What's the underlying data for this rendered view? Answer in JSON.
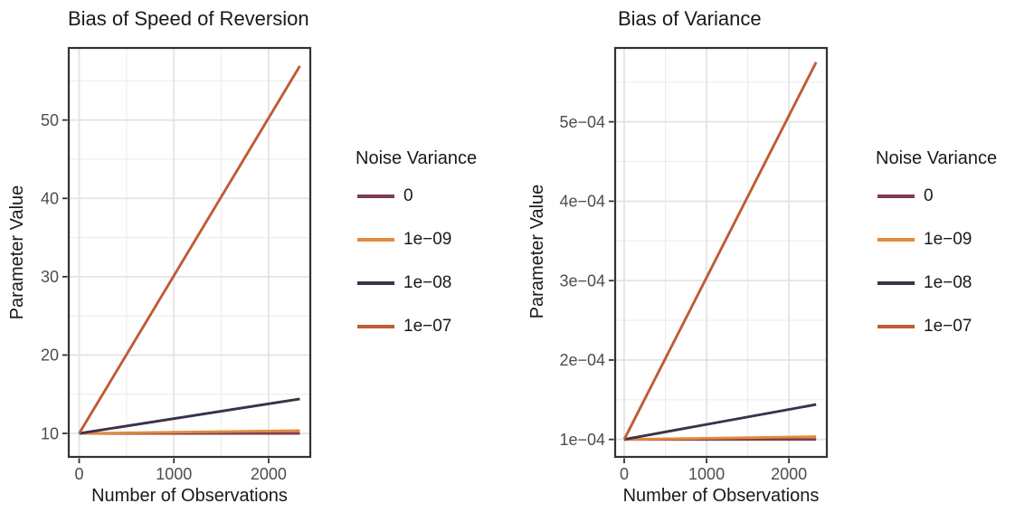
{
  "style": {
    "background": "#FFFFFF",
    "tick_label_color": "#4D4D4D",
    "axis_text_color": "#1A1A1A",
    "panel_border_color": "#333333",
    "tick_mark_color": "#333333",
    "grid_major_color": "#E4E4E4",
    "grid_minor_color": "#ECECEC"
  },
  "chart_data": [
    {
      "type": "line",
      "title": "Bias of Speed of Reversion",
      "xlabel": "Number of Observations",
      "ylabel": "Parameter Value",
      "legend_title": "Noise Variance",
      "legend_position": "right",
      "grid": true,
      "panel_border": true,
      "xlim": [
        -110,
        2440
      ],
      "ylim": [
        7.0,
        59.2
      ],
      "x": [
        0,
        2330
      ],
      "xticks": {
        "values": [
          0,
          1000,
          2000
        ],
        "labels": [
          "0",
          "1000",
          "2000"
        ],
        "minor": [
          500,
          1500
        ]
      },
      "yticks": {
        "values": [
          10,
          20,
          30,
          40,
          50
        ],
        "labels": [
          "10",
          "20",
          "30",
          "40",
          "50"
        ],
        "minor": [
          15,
          25,
          35,
          45,
          55
        ]
      },
      "series": [
        {
          "name": "0",
          "color": "#7E3C4D",
          "values": [
            10,
            10.0
          ]
        },
        {
          "name": "1e−09",
          "color": "#E18B3D",
          "values": [
            10,
            10.35
          ]
        },
        {
          "name": "1e−08",
          "color": "#3B3249",
          "values": [
            10,
            14.4
          ]
        },
        {
          "name": "1e−07",
          "color": "#C05B33",
          "values": [
            10,
            56.9
          ]
        }
      ]
    },
    {
      "type": "line",
      "title": "Bias of Variance",
      "xlabel": "Number of Observations",
      "ylabel": "Parameter Value",
      "legend_title": "Noise Variance",
      "legend_position": "right",
      "grid": true,
      "panel_border": true,
      "xlim": [
        -110,
        2460
      ],
      "ylim": [
        7.8e-05,
        0.000593
      ],
      "x": [
        0,
        2330
      ],
      "xticks": {
        "values": [
          0,
          1000,
          2000
        ],
        "labels": [
          "0",
          "1000",
          "2000"
        ],
        "minor": [
          500,
          1500
        ]
      },
      "yticks": {
        "values": [
          0.0001,
          0.0002,
          0.0003,
          0.0004,
          0.0005
        ],
        "labels": [
          "1e−04",
          "2e−04",
          "3e−04",
          "4e−04",
          "5e−04"
        ],
        "minor": [
          0.00015,
          0.00025,
          0.00035,
          0.00045,
          0.00055
        ]
      },
      "series": [
        {
          "name": "0",
          "color": "#7E3C4D",
          "values": [
            0.0001,
            0.0001
          ]
        },
        {
          "name": "1e−09",
          "color": "#E18B3D",
          "values": [
            0.0001,
            0.0001035
          ]
        },
        {
          "name": "1e−08",
          "color": "#3B3249",
          "values": [
            0.0001,
            0.000144
          ]
        },
        {
          "name": "1e−07",
          "color": "#C05B33",
          "values": [
            0.0001,
            0.000575
          ]
        }
      ]
    }
  ]
}
